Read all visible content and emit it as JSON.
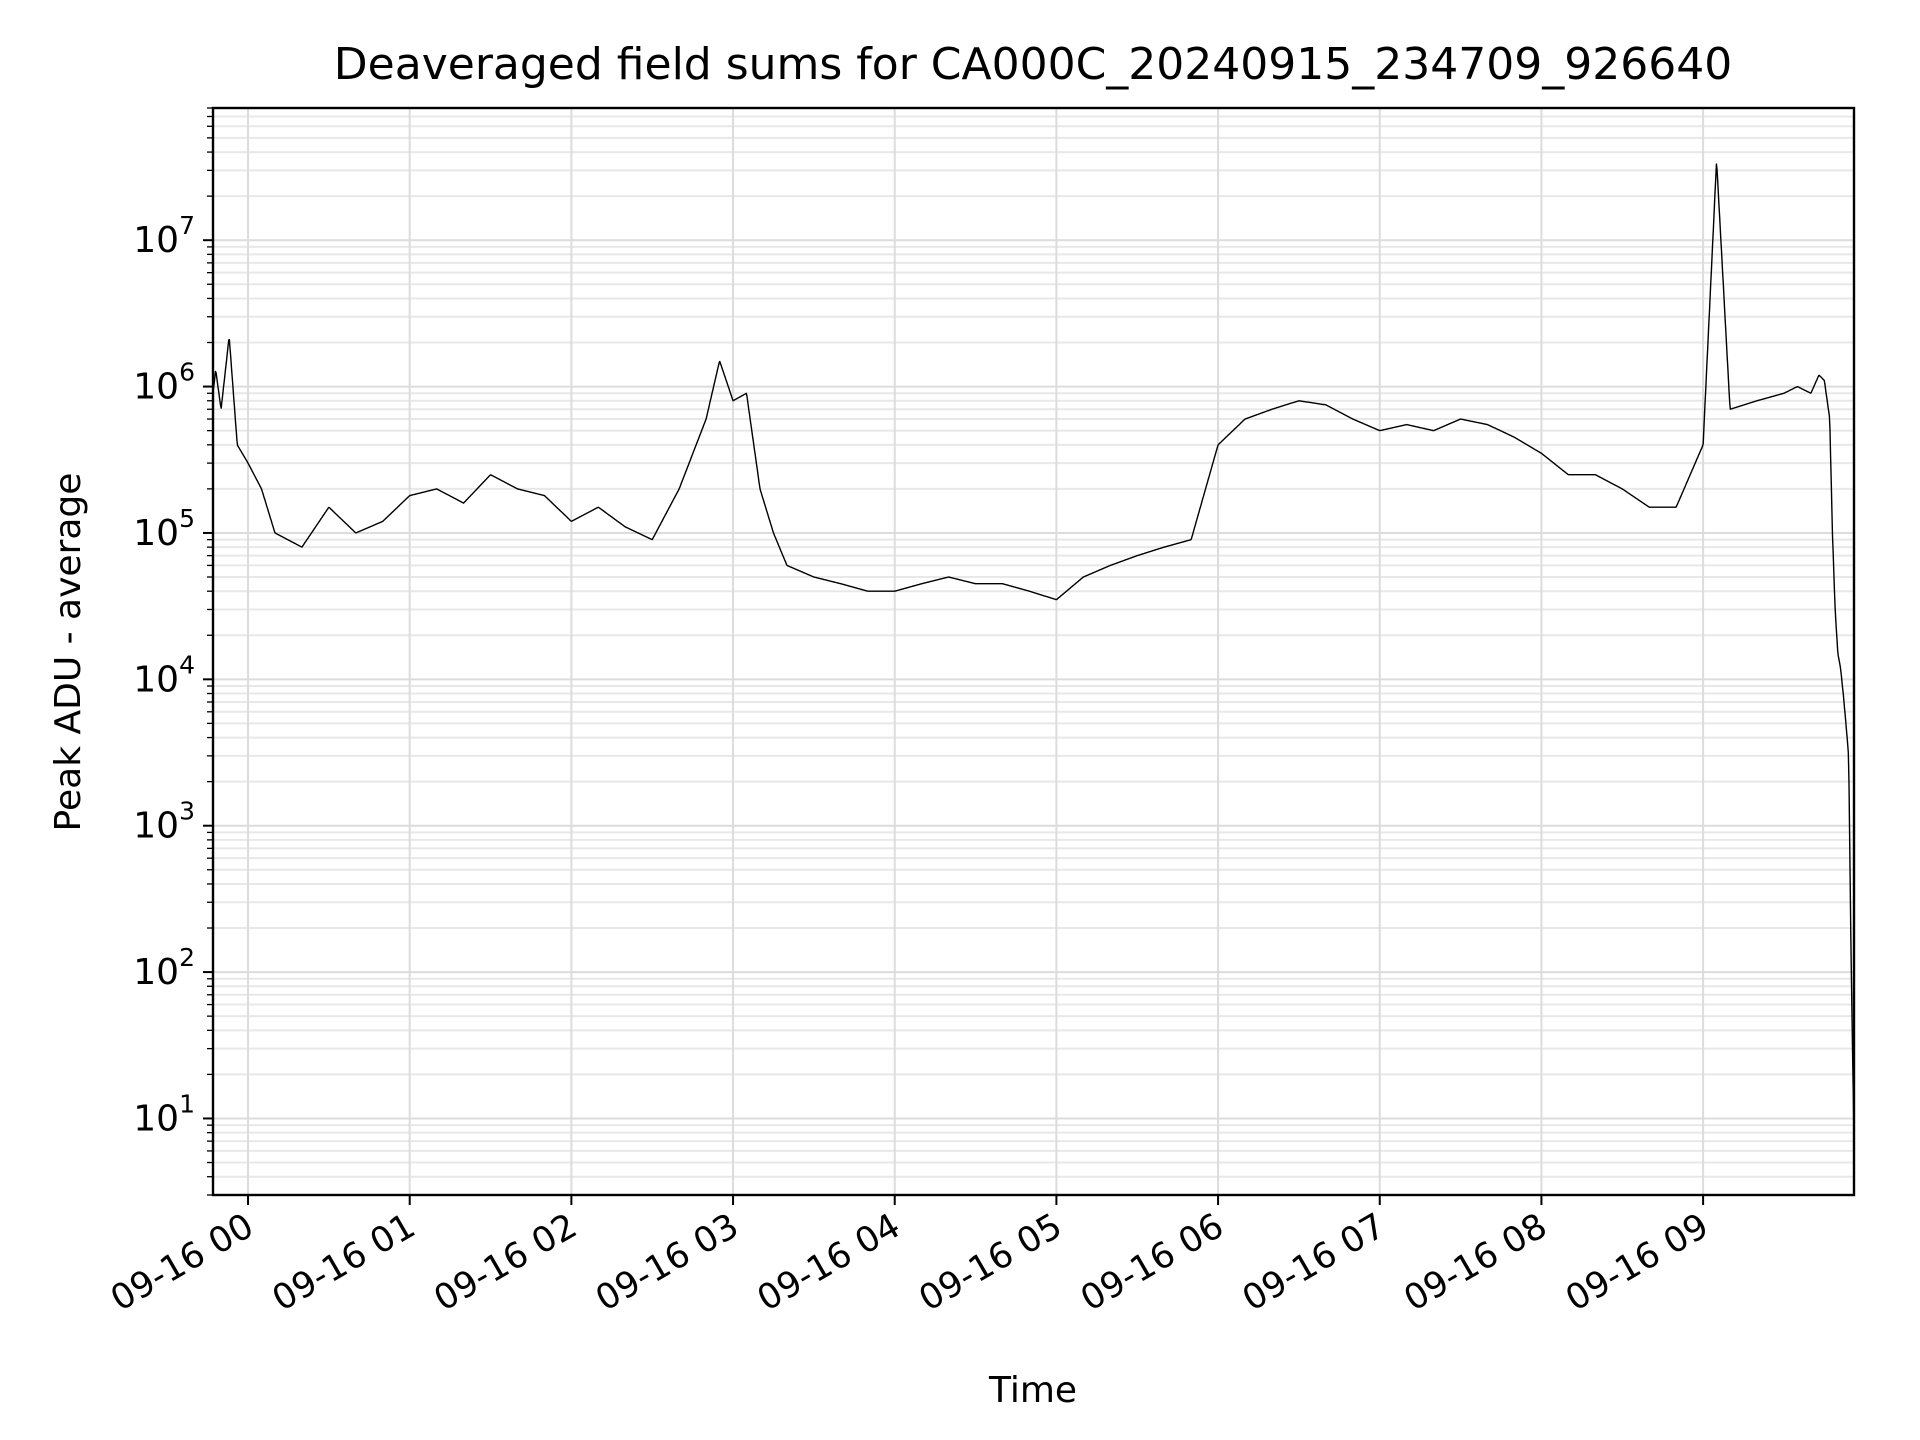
{
  "chart_data": {
    "type": "line",
    "title": "Deaveraged field sums for CA000C_20240915_234709_926640",
    "xlabel": "Time",
    "ylabel": "Peak ADU - average",
    "y_scale": "log",
    "ylim": [
      3,
      80000000
    ],
    "xlim": [
      "2024-09-15 23:47",
      "2024-09-16 09:56"
    ],
    "grid": true,
    "x_ticks": [
      {
        "label": "09-16 00",
        "value": "2024-09-16 00:00"
      },
      {
        "label": "09-16 01",
        "value": "2024-09-16 01:00"
      },
      {
        "label": "09-16 02",
        "value": "2024-09-16 02:00"
      },
      {
        "label": "09-16 03",
        "value": "2024-09-16 03:00"
      },
      {
        "label": "09-16 04",
        "value": "2024-09-16 04:00"
      },
      {
        "label": "09-16 05",
        "value": "2024-09-16 05:00"
      },
      {
        "label": "09-16 06",
        "value": "2024-09-16 06:00"
      },
      {
        "label": "09-16 07",
        "value": "2024-09-16 07:00"
      },
      {
        "label": "09-16 08",
        "value": "2024-09-16 08:00"
      },
      {
        "label": "09-16 09",
        "value": "2024-09-16 09:00"
      }
    ],
    "y_ticks": [
      {
        "base": "10",
        "exp": "1",
        "value": 10
      },
      {
        "base": "10",
        "exp": "2",
        "value": 100
      },
      {
        "base": "10",
        "exp": "3",
        "value": 1000
      },
      {
        "base": "10",
        "exp": "4",
        "value": 10000
      },
      {
        "base": "10",
        "exp": "5",
        "value": 100000
      },
      {
        "base": "10",
        "exp": "6",
        "value": 1000000
      },
      {
        "base": "10",
        "exp": "7",
        "value": 10000000
      }
    ],
    "series": [
      {
        "color": "#000000",
        "x": [
          "2024-09-15 23:47",
          "2024-09-15 23:48",
          "2024-09-15 23:50",
          "2024-09-15 23:53",
          "2024-09-15 23:56",
          "2024-09-16 00:00",
          "2024-09-16 00:05",
          "2024-09-16 00:10",
          "2024-09-16 00:20",
          "2024-09-16 00:30",
          "2024-09-16 00:40",
          "2024-09-16 00:50",
          "2024-09-16 01:00",
          "2024-09-16 01:10",
          "2024-09-16 01:20",
          "2024-09-16 01:30",
          "2024-09-16 01:40",
          "2024-09-16 01:50",
          "2024-09-16 02:00",
          "2024-09-16 02:10",
          "2024-09-16 02:20",
          "2024-09-16 02:30",
          "2024-09-16 02:40",
          "2024-09-16 02:50",
          "2024-09-16 02:55",
          "2024-09-16 03:00",
          "2024-09-16 03:05",
          "2024-09-16 03:10",
          "2024-09-16 03:15",
          "2024-09-16 03:20",
          "2024-09-16 03:30",
          "2024-09-16 03:40",
          "2024-09-16 03:50",
          "2024-09-16 04:00",
          "2024-09-16 04:10",
          "2024-09-16 04:20",
          "2024-09-16 04:30",
          "2024-09-16 04:40",
          "2024-09-16 04:50",
          "2024-09-16 05:00",
          "2024-09-16 05:10",
          "2024-09-16 05:20",
          "2024-09-16 05:30",
          "2024-09-16 05:40",
          "2024-09-16 05:50",
          "2024-09-16 06:00",
          "2024-09-16 06:10",
          "2024-09-16 06:20",
          "2024-09-16 06:30",
          "2024-09-16 06:40",
          "2024-09-16 06:50",
          "2024-09-16 07:00",
          "2024-09-16 07:10",
          "2024-09-16 07:20",
          "2024-09-16 07:30",
          "2024-09-16 07:40",
          "2024-09-16 07:50",
          "2024-09-16 08:00",
          "2024-09-16 08:10",
          "2024-09-16 08:20",
          "2024-09-16 08:30",
          "2024-09-16 08:40",
          "2024-09-16 08:50",
          "2024-09-16 09:00",
          "2024-09-16 09:05",
          "2024-09-16 09:10",
          "2024-09-16 09:20",
          "2024-09-16 09:30",
          "2024-09-16 09:35",
          "2024-09-16 09:40",
          "2024-09-16 09:43",
          "2024-09-16 09:45",
          "2024-09-16 09:47",
          "2024-09-16 09:48",
          "2024-09-16 09:49",
          "2024-09-16 09:50",
          "2024-09-16 09:51",
          "2024-09-16 09:52",
          "2024-09-16 09:53",
          "2024-09-16 09:54",
          "2024-09-16 09:55",
          "2024-09-16 09:56"
        ],
        "y": [
          900000,
          1300000,
          700000,
          2200000,
          400000,
          300000,
          200000,
          100000,
          80000,
          150000,
          100000,
          120000,
          180000,
          200000,
          160000,
          250000,
          200000,
          180000,
          120000,
          150000,
          110000,
          90000,
          200000,
          600000,
          1500000,
          800000,
          900000,
          200000,
          100000,
          60000,
          50000,
          45000,
          40000,
          40000,
          45000,
          50000,
          45000,
          45000,
          40000,
          35000,
          50000,
          60000,
          70000,
          80000,
          90000,
          400000,
          600000,
          700000,
          800000,
          750000,
          600000,
          500000,
          550000,
          500000,
          600000,
          550000,
          450000,
          350000,
          250000,
          250000,
          200000,
          150000,
          150000,
          400000,
          35000000,
          700000,
          800000,
          900000,
          1000000,
          900000,
          1200000,
          1100000,
          600000,
          100000,
          30000,
          15000,
          12000,
          8000,
          5000,
          3000,
          100,
          7
        ]
      }
    ]
  }
}
